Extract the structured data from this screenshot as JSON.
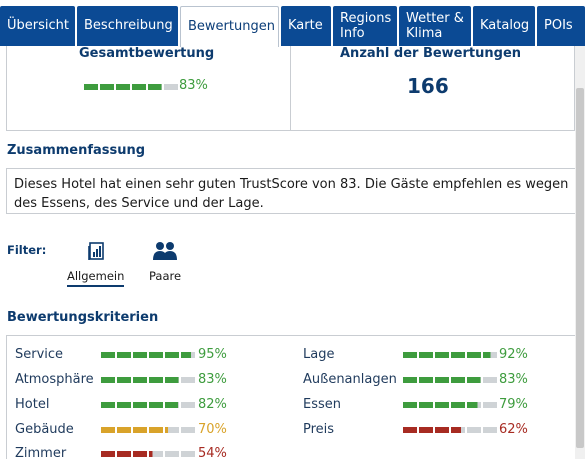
{
  "tabs": [
    {
      "label": "Übersicht",
      "active": false
    },
    {
      "label": "Beschreibung",
      "active": false
    },
    {
      "label": "Bewertungen",
      "active": true
    },
    {
      "label": "Karte",
      "active": false
    },
    {
      "label": "Regions Info",
      "active": false
    },
    {
      "label": "Wetter & Klima",
      "active": false
    },
    {
      "label": "Katalog",
      "active": false
    },
    {
      "label": "POIs",
      "active": false
    }
  ],
  "overall": {
    "title": "Gesamtbewertung",
    "percent_label": "83%",
    "percent": 83
  },
  "count": {
    "title": "Anzahl der Bewertungen",
    "value": "166"
  },
  "summary": {
    "title": "Zusammenfassung",
    "text": "Dieses Hotel hat einen sehr guten TrustScore von 83. Die Gäste empfehlen es wegen des Essens, des Service und der Lage."
  },
  "filter": {
    "label": "Filter:",
    "options": [
      {
        "label": "Allgemein",
        "icon": "general-chart-icon",
        "active": true
      },
      {
        "label": "Paare",
        "icon": "couple-icon",
        "active": false
      }
    ]
  },
  "criteria": {
    "title": "Bewertungskriterien",
    "colors": {
      "green": "#3e9c3e",
      "yellow": "#d9a32a",
      "red": "#a72b22",
      "empty": "#cfd3d6"
    },
    "items": [
      {
        "name": "Service",
        "pct_label": "95%",
        "pct": 95,
        "color": "green"
      },
      {
        "name": "Lage",
        "pct_label": "92%",
        "pct": 92,
        "color": "green"
      },
      {
        "name": "Atmosphäre",
        "pct_label": "83%",
        "pct": 83,
        "color": "green"
      },
      {
        "name": "Außenanlagen",
        "pct_label": "83%",
        "pct": 83,
        "color": "green"
      },
      {
        "name": "Hotel",
        "pct_label": "82%",
        "pct": 82,
        "color": "green"
      },
      {
        "name": "Essen",
        "pct_label": "79%",
        "pct": 79,
        "color": "green"
      },
      {
        "name": "Gebäude",
        "pct_label": "70%",
        "pct": 70,
        "color": "yellow"
      },
      {
        "name": "Preis",
        "pct_label": "62%",
        "pct": 62,
        "color": "red"
      },
      {
        "name": "Zimmer",
        "pct_label": "54%",
        "pct": 54,
        "color": "red"
      }
    ]
  }
}
